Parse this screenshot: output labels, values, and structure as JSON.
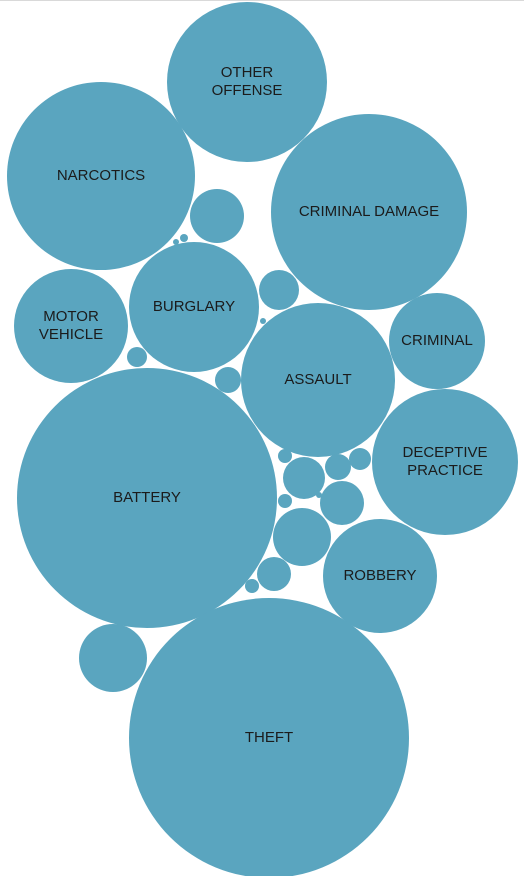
{
  "chart_data": {
    "type": "bubble",
    "color": "#5aa5bf",
    "label_color": "#1b1b1b",
    "bubbles": [
      {
        "id": "other-offense",
        "label_lines": [
          "OTHER",
          "OFFENSE"
        ],
        "size": 2.6
      },
      {
        "id": "narcotics",
        "label_lines": [
          "NARCOTICS"
        ],
        "size": 3.6
      },
      {
        "id": "criminal-damage",
        "label_lines": [
          "CRIMINAL DAMAGE"
        ],
        "size": 3.9
      },
      {
        "id": "motor-vehicle",
        "label_lines": [
          "MOTOR",
          "VEHICLE"
        ],
        "size": 1.3
      },
      {
        "id": "burglary",
        "label_lines": [
          "BURGLARY"
        ],
        "size": 1.7
      },
      {
        "id": "criminal",
        "label_lines": [
          "CRIMINAL"
        ],
        "size": 0.9
      },
      {
        "id": "assault",
        "label_lines": [
          "ASSAULT"
        ],
        "size": 2.4
      },
      {
        "id": "deceptive-practice",
        "label_lines": [
          "DECEPTIVE",
          "PRACTICE"
        ],
        "size": 2.1
      },
      {
        "id": "battery",
        "label_lines": [
          "BATTERY"
        ],
        "size": 6.7
      },
      {
        "id": "robbery",
        "label_lines": [
          "ROBBERY"
        ],
        "size": 1.3
      },
      {
        "id": "theft",
        "label_lines": [
          "THEFT"
        ],
        "size": 7.8
      },
      {
        "id": "unlabeled-1",
        "label_lines": [],
        "size": 0.3
      },
      {
        "id": "unlabeled-2",
        "label_lines": [],
        "size": 0.16
      },
      {
        "id": "unlabeled-3",
        "label_lines": [],
        "size": 0.12
      },
      {
        "id": "unlabeled-4",
        "label_lines": [],
        "size": 0.22
      },
      {
        "id": "unlabeled-5",
        "label_lines": [],
        "size": 0.2
      },
      {
        "id": "unlabeled-6",
        "label_lines": [],
        "size": 0.08
      },
      {
        "id": "unlabeled-7",
        "label_lines": [],
        "size": 0.04
      },
      {
        "id": "unlabeled-8",
        "label_lines": [],
        "size": 0.06
      },
      {
        "id": "unlabeled-9",
        "label_lines": [],
        "size": 0.02
      },
      {
        "id": "unlabeled-10",
        "label_lines": [],
        "size": 0.03
      },
      {
        "id": "unlabeled-11",
        "label_lines": [],
        "size": 0.4
      },
      {
        "id": "unlabeled-12",
        "label_lines": [],
        "size": 0.05
      },
      {
        "id": "unlabeled-13",
        "label_lines": [],
        "size": 0.02
      },
      {
        "id": "unlabeled-14",
        "label_lines": [],
        "size": 0.01
      },
      {
        "id": "unlabeled-15",
        "label_lines": [],
        "size": 0.01
      },
      {
        "id": "unlabeled-16",
        "label_lines": [],
        "size": 0.01
      },
      {
        "id": "unlabeled-17",
        "label_lines": [],
        "size": 0.01
      },
      {
        "id": "unlabeled-18",
        "label_lines": [],
        "size": 0.005
      }
    ]
  }
}
